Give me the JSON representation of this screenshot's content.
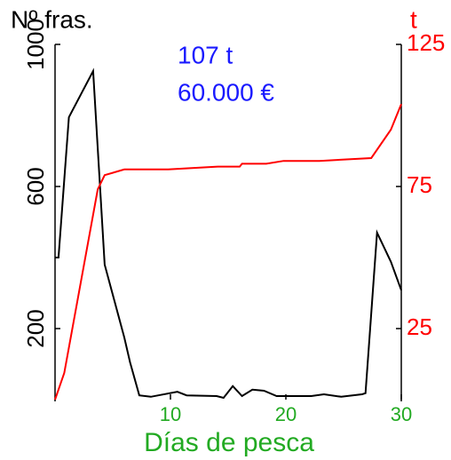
{
  "chart_data": {
    "type": "line",
    "ylabel": "Nº fras.",
    "y2label": "t",
    "xlabel": "Días de pesca",
    "annotations": [
      "107 t",
      "60.000 €"
    ],
    "xlim": [
      0,
      30
    ],
    "xticks": [
      10,
      20,
      30
    ],
    "ylim": [
      0,
      1000
    ],
    "yticks": [
      200,
      600,
      1000
    ],
    "y2lim": [
      0,
      125
    ],
    "y2ticks": [
      25,
      75,
      125
    ],
    "series": [
      {
        "color": "#000000",
        "x": [
          0,
          0.3,
          1.2,
          3.3,
          4.3,
          6,
          6.5,
          7.3,
          8.3,
          10.6,
          11.4,
          14,
          14.6,
          15.4,
          16.2,
          17.1,
          18.1,
          19.2,
          22.2,
          23.3,
          24.8,
          26.6,
          26.9,
          27.9,
          29.1,
          30
        ],
        "values": [
          400,
          400,
          795,
          925,
          380,
          175,
          105,
          12,
          8,
          22,
          12,
          10,
          5,
          38,
          10,
          28,
          25,
          10,
          10,
          15,
          8,
          15,
          18,
          470,
          388,
          308
        ]
      },
      {
        "color": "#ff0000",
        "axis": "y2",
        "x": [
          0,
          0.8,
          3.7,
          4.3,
          6,
          9.8,
          14.1,
          16,
          16.2,
          18.3,
          19.8,
          22.9,
          27.4,
          29.1,
          30
        ],
        "values": [
          0,
          9.4,
          74,
          79,
          81,
          81,
          82,
          82,
          83,
          83,
          84,
          84,
          85,
          95,
          104
        ]
      }
    ]
  }
}
